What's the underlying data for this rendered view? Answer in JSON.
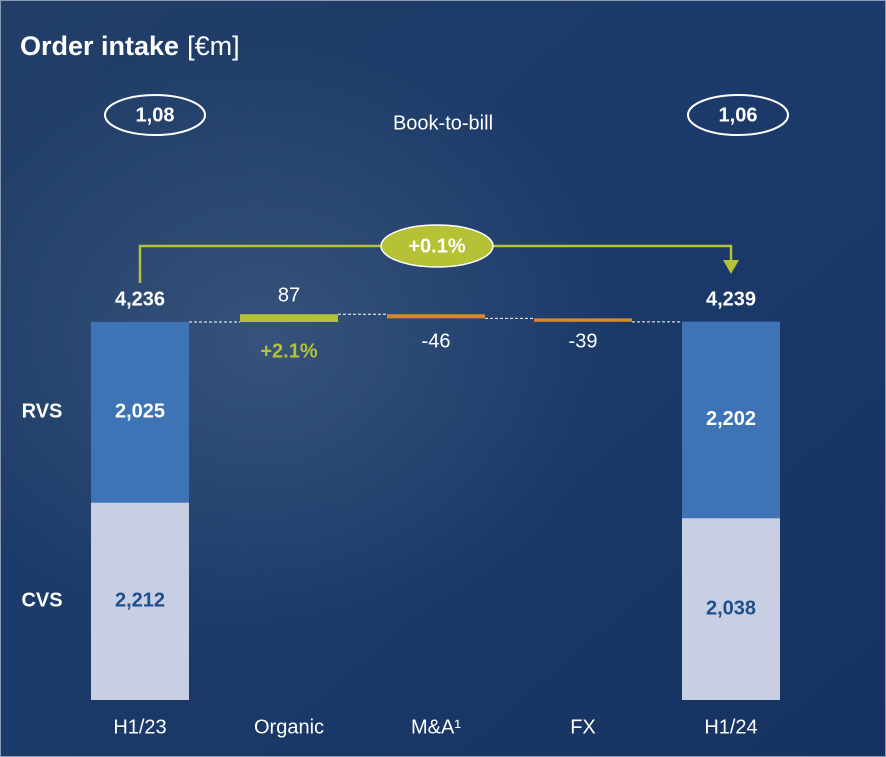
{
  "chart_data": {
    "type": "waterfall",
    "title": "Order intake",
    "title_unit": "[€m]",
    "book_to_bill_label": "Book-to-bill",
    "book_to_bill_start": "1,08",
    "book_to_bill_end": "1,06",
    "total_change_label": "+0.1%",
    "organic_change_label": "+2.1%",
    "categories": [
      "H1/23",
      "Organic",
      "M&A¹",
      "FX",
      "H1/24"
    ],
    "series": [
      {
        "name": "CVS",
        "color": "#c8cfe2",
        "label_color": "#1f4e8c",
        "values": [
          2212,
          null,
          null,
          null,
          2038
        ],
        "value_labels": [
          "2,212",
          null,
          null,
          null,
          "2,038"
        ]
      },
      {
        "name": "RVS",
        "color": "#3e74b6",
        "label_color": "#ffffff",
        "values": [
          2025,
          null,
          null,
          null,
          2202
        ],
        "value_labels": [
          "2,025",
          null,
          null,
          null,
          "2,202"
        ]
      }
    ],
    "totals": {
      "values": [
        4236,
        null,
        null,
        null,
        4239
      ],
      "value_labels": [
        "4,236",
        null,
        null,
        null,
        "4,239"
      ]
    },
    "deltas": {
      "values": [
        null,
        87,
        -46,
        -39,
        null
      ],
      "increase_color": "#b5c236",
      "decrease_color": "#d6892c"
    }
  }
}
